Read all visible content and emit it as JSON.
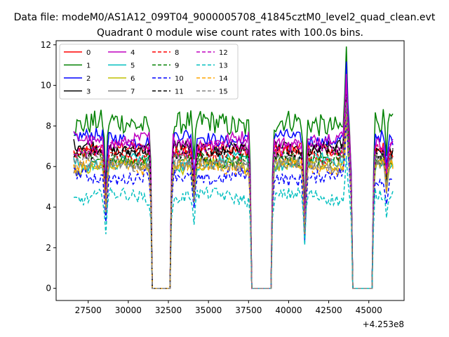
{
  "chart_data": {
    "type": "line",
    "suptitle": "Data file: modeM0/AS1A12_099T04_9000005708_41845cztM0_level2_quad_clean.evt",
    "title": "Quadrant 0 module wise count rates with 100.0s bins.",
    "xlabel": "",
    "ylabel": "",
    "x_offset_label": "+4.253e8",
    "xlim": [
      25500,
      47200
    ],
    "ylim": [
      -0.6,
      12.2
    ],
    "x_ticks": [
      27500,
      30000,
      32500,
      35000,
      37500,
      40000,
      42500,
      45000
    ],
    "y_ticks": [
      0,
      2,
      4,
      6,
      8,
      10,
      12
    ],
    "x_tick_labels": [
      "27500",
      "30000",
      "32500",
      "35000",
      "37500",
      "40000",
      "42500",
      "45000"
    ],
    "y_tick_labels": [
      "0",
      "2",
      "4",
      "6",
      "8",
      "10",
      "12"
    ],
    "grid": false,
    "legend_position": "top-left",
    "legend_columns": 4,
    "segments": [
      {
        "start": 26600,
        "end": 31400
      },
      {
        "start": 32700,
        "end": 37600
      },
      {
        "start": 39000,
        "end": 43900
      },
      {
        "start": 45300,
        "end": 46500
      }
    ],
    "gaps": [
      {
        "start": 31500,
        "end": 32600
      },
      {
        "start": 37700,
        "end": 38900
      },
      {
        "start": 44000,
        "end": 45200
      }
    ],
    "dips": [
      {
        "at": 28600,
        "factor": 0.6
      },
      {
        "at": 34100,
        "factor": 0.72
      },
      {
        "at": 41000,
        "factor": 0.45
      },
      {
        "at": 46100,
        "factor": 0.78
      }
    ],
    "flare": {
      "at": 43600,
      "factor": 1.45
    },
    "series": [
      {
        "name": "0",
        "mean": 6.8,
        "color": "#ff0000",
        "dash": "solid"
      },
      {
        "name": "1",
        "mean": 8.1,
        "color": "#008000",
        "dash": "solid"
      },
      {
        "name": "2",
        "mean": 7.4,
        "color": "#0000ff",
        "dash": "solid"
      },
      {
        "name": "3",
        "mean": 6.9,
        "color": "#000000",
        "dash": "solid"
      },
      {
        "name": "4",
        "mean": 7.3,
        "color": "#bf00bf",
        "dash": "solid"
      },
      {
        "name": "5",
        "mean": 6.2,
        "color": "#00bfbf",
        "dash": "solid"
      },
      {
        "name": "6",
        "mean": 6.0,
        "color": "#bfbf00",
        "dash": "solid"
      },
      {
        "name": "7",
        "mean": 6.1,
        "color": "#808080",
        "dash": "solid"
      },
      {
        "name": "8",
        "mean": 6.6,
        "color": "#ff0000",
        "dash": "dashed"
      },
      {
        "name": "9",
        "mean": 6.4,
        "color": "#008000",
        "dash": "dashed"
      },
      {
        "name": "10",
        "mean": 5.5,
        "color": "#0000ff",
        "dash": "dashed"
      },
      {
        "name": "11",
        "mean": 6.7,
        "color": "#000000",
        "dash": "dashed"
      },
      {
        "name": "12",
        "mean": 6.9,
        "color": "#bf00bf",
        "dash": "dashed"
      },
      {
        "name": "13",
        "mean": 4.5,
        "color": "#00bfbf",
        "dash": "dashed"
      },
      {
        "name": "14",
        "mean": 6.0,
        "color": "#ffa500",
        "dash": "dashed"
      },
      {
        "name": "15",
        "mean": 6.2,
        "color": "#808080",
        "dash": "dashed"
      }
    ]
  }
}
